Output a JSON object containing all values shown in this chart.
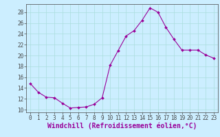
{
  "hours": [
    0,
    1,
    2,
    3,
    4,
    5,
    6,
    7,
    8,
    9,
    10,
    11,
    12,
    13,
    14,
    15,
    16,
    17,
    18,
    19,
    20,
    21,
    22,
    23
  ],
  "values": [
    14.8,
    13.2,
    12.3,
    12.2,
    11.2,
    10.3,
    10.4,
    10.5,
    11.0,
    12.2,
    18.2,
    20.9,
    23.6,
    24.6,
    26.5,
    28.8,
    28.0,
    25.2,
    23.0,
    21.0,
    21.0,
    21.0,
    20.1,
    19.5
  ],
  "line_color": "#990099",
  "marker": "D",
  "marker_size": 2,
  "bg_color": "#cceeff",
  "grid_color": "#aadddd",
  "xlabel": "Windchill (Refroidissement éolien,°C)",
  "ylim": [
    9.5,
    29.5
  ],
  "xlim": [
    -0.5,
    23.5
  ],
  "yticks": [
    10,
    12,
    14,
    16,
    18,
    20,
    22,
    24,
    26,
    28
  ],
  "xticks": [
    0,
    1,
    2,
    3,
    4,
    5,
    6,
    7,
    8,
    9,
    10,
    11,
    12,
    13,
    14,
    15,
    16,
    17,
    18,
    19,
    20,
    21,
    22,
    23
  ],
  "tick_fontsize": 5.5,
  "xlabel_fontsize": 7.0,
  "line_color_hex": "#880088",
  "spine_color": "#444444"
}
